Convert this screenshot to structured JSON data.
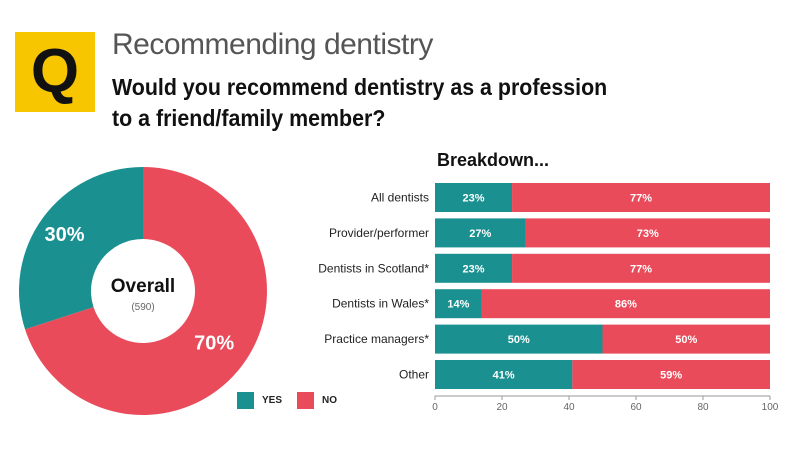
{
  "header": {
    "badge": "Q",
    "subtitle": "Recommending dentistry",
    "question": "Would you recommend dentistry as a profession to a friend/family member?"
  },
  "colors": {
    "yes": "#1a9090",
    "no": "#e94b5b"
  },
  "legend": {
    "yes": "YES",
    "no": "NO"
  },
  "chart_data": [
    {
      "type": "pie",
      "title": "Overall",
      "subtitle": "(590)",
      "donut": true,
      "slices": [
        {
          "label": "YES",
          "value": 30,
          "display": "30%"
        },
        {
          "label": "NO",
          "value": 70,
          "display": "70%"
        }
      ]
    },
    {
      "type": "bar",
      "orientation": "horizontal",
      "stacked": true,
      "title": "Breakdown...",
      "categories": [
        "All dentists",
        "Provider/performer",
        "Dentists in Scotland*",
        "Dentists in Wales*",
        "Practice managers*",
        "Other"
      ],
      "series": [
        {
          "name": "YES",
          "values": [
            23,
            27,
            23,
            14,
            50,
            41
          ]
        },
        {
          "name": "NO",
          "values": [
            77,
            73,
            77,
            86,
            50,
            59
          ]
        }
      ],
      "xlim": [
        0,
        100
      ],
      "xticks": [
        0,
        20,
        40,
        60,
        80,
        100
      ],
      "value_suffix": "%"
    }
  ]
}
